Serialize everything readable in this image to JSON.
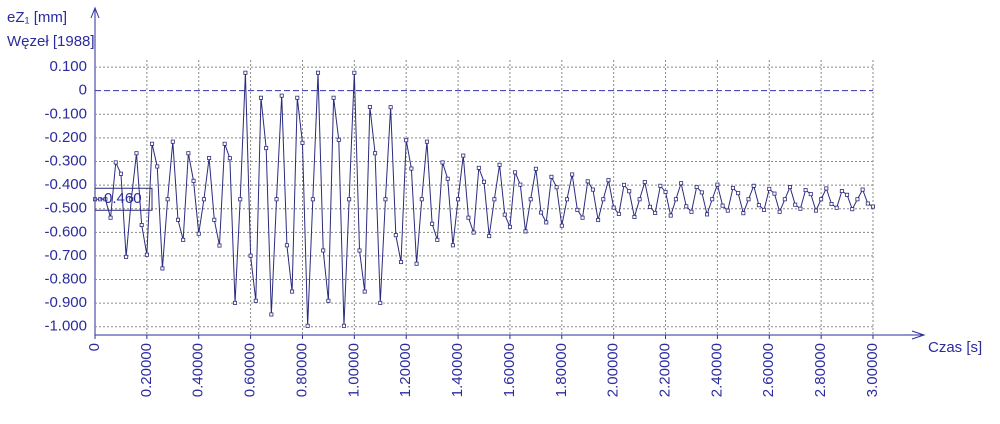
{
  "chart_data": {
    "type": "line",
    "y_label": "eZ₁ [mm]",
    "subtitle": "Węzeł [1988]",
    "x_label": "Czas [s]",
    "annotation": "-0.460",
    "color": "#2b2b7e",
    "grid": true,
    "markers": true,
    "xlim": [
      0,
      3.0
    ],
    "ylim": [
      -1.035,
      0.13
    ],
    "xticks": [
      0,
      {
        "value": 0.2,
        "label": "0.20000"
      },
      {
        "value": 0.4,
        "label": "0.40000"
      },
      {
        "value": 0.6,
        "label": "0.60000"
      },
      {
        "value": 0.8,
        "label": "0.80000"
      },
      {
        "value": 1.0,
        "label": "1.00000"
      },
      {
        "value": 1.2,
        "label": "1.20000"
      },
      {
        "value": 1.4,
        "label": "1.40000"
      },
      {
        "value": 1.6,
        "label": "1.60000"
      },
      {
        "value": 1.8,
        "label": "1.80000"
      },
      {
        "value": 2.0,
        "label": "2.00000"
      },
      {
        "value": 2.2,
        "label": "2.20000"
      },
      {
        "value": 2.4,
        "label": "2.40000"
      },
      {
        "value": 2.6,
        "label": "2.60000"
      },
      {
        "value": 2.8,
        "label": "2.80000"
      },
      {
        "value": 3.0,
        "label": "3.00000"
      }
    ],
    "yticks": [
      {
        "value": 0.1,
        "label": "0.100"
      },
      0,
      {
        "value": -0.1,
        "label": "-0.100"
      },
      {
        "value": -0.2,
        "label": "-0.200"
      },
      {
        "value": -0.3,
        "label": "-0.300"
      },
      {
        "value": -0.4,
        "label": "-0.400"
      },
      {
        "value": -0.5,
        "label": "-0.500"
      },
      {
        "value": -0.6,
        "label": "-0.600"
      },
      {
        "value": -0.7,
        "label": "-0.700"
      },
      {
        "value": -0.8,
        "label": "-0.800"
      },
      {
        "value": -0.9,
        "label": "-0.900"
      },
      {
        "value": -1.0,
        "label": "-1.000"
      }
    ],
    "x": [
      0,
      0.02,
      0.04,
      0.06,
      0.08,
      0.1,
      0.12,
      0.14,
      0.16,
      0.18,
      0.2,
      0.22,
      0.24,
      0.26,
      0.28,
      0.3,
      0.32,
      0.34,
      0.36,
      0.38,
      0.4,
      0.42,
      0.44,
      0.46,
      0.48,
      0.5,
      0.52,
      0.54,
      0.56,
      0.58,
      0.6,
      0.62,
      0.64,
      0.66,
      0.68,
      0.7,
      0.72,
      0.74,
      0.76,
      0.78,
      0.8,
      0.82,
      0.84,
      0.86,
      0.88,
      0.9,
      0.92,
      0.94,
      0.96,
      0.98,
      1.0,
      1.02,
      1.04,
      1.06,
      1.08,
      1.1,
      1.12,
      1.14,
      1.16,
      1.18,
      1.2,
      1.22,
      1.24,
      1.26,
      1.28,
      1.3,
      1.32,
      1.34,
      1.36,
      1.38,
      1.4,
      1.42,
      1.44,
      1.46,
      1.48,
      1.5,
      1.52,
      1.54,
      1.56,
      1.58,
      1.6,
      1.62,
      1.64,
      1.66,
      1.68,
      1.7,
      1.72,
      1.74,
      1.76,
      1.78,
      1.8,
      1.82,
      1.84,
      1.86,
      1.88,
      1.9,
      1.92,
      1.94,
      1.96,
      1.98,
      2.0,
      2.02,
      2.04,
      2.06,
      2.08,
      2.1,
      2.12,
      2.14,
      2.16,
      2.18,
      2.2,
      2.22,
      2.24,
      2.26,
      2.28,
      2.3,
      2.32,
      2.34,
      2.36,
      2.38,
      2.4,
      2.42,
      2.44,
      2.46,
      2.48,
      2.5,
      2.52,
      2.54,
      2.56,
      2.58,
      2.6,
      2.62,
      2.64,
      2.66,
      2.68,
      2.7,
      2.72,
      2.74,
      2.76,
      2.78,
      2.8,
      2.82,
      2.84,
      2.86,
      2.88,
      2.9,
      2.92,
      2.94,
      2.96,
      2.98,
      3.0
    ],
    "values": [
      -0.46,
      -0.46,
      -0.46,
      -0.538,
      -0.304,
      -0.352,
      -0.704,
      -0.46,
      -0.265,
      -0.569,
      -0.695,
      -0.225,
      -0.321,
      -0.753,
      -0.46,
      -0.216,
      -0.547,
      -0.632,
      -0.265,
      -0.382,
      -0.606,
      -0.46,
      -0.285,
      -0.547,
      -0.656,
      -0.225,
      -0.286,
      -0.899,
      -0.46,
      0.076,
      -0.699,
      -0.89,
      -0.03,
      -0.243,
      -0.948,
      -0.46,
      -0.021,
      -0.655,
      -0.851,
      -0.03,
      -0.221,
      -0.996,
      -0.46,
      0.076,
      -0.677,
      -0.89,
      -0.03,
      -0.208,
      -0.996,
      -0.46,
      0.076,
      -0.677,
      -0.851,
      -0.069,
      -0.265,
      -0.899,
      -0.46,
      -0.07,
      -0.612,
      -0.726,
      -0.21,
      -0.33,
      -0.733,
      -0.46,
      -0.216,
      -0.564,
      -0.632,
      -0.304,
      -0.373,
      -0.655,
      -0.46,
      -0.275,
      -0.538,
      -0.601,
      -0.327,
      -0.386,
      -0.616,
      -0.46,
      -0.314,
      -0.525,
      -0.577,
      -0.346,
      -0.398,
      -0.596,
      -0.46,
      -0.331,
      -0.516,
      -0.558,
      -0.365,
      -0.409,
      -0.572,
      -0.46,
      -0.355,
      -0.505,
      -0.538,
      -0.384,
      -0.419,
      -0.548,
      -0.46,
      -0.379,
      -0.495,
      -0.522,
      -0.399,
      -0.426,
      -0.535,
      -0.46,
      -0.387,
      -0.492,
      -0.518,
      -0.403,
      -0.429,
      -0.529,
      -0.46,
      -0.392,
      -0.49,
      -0.513,
      -0.408,
      -0.431,
      -0.524,
      -0.46,
      -0.398,
      -0.487,
      -0.508,
      -0.412,
      -0.434,
      -0.519,
      -0.46,
      -0.403,
      -0.485,
      -0.505,
      -0.416,
      -0.436,
      -0.513,
      -0.46,
      -0.408,
      -0.483,
      -0.5,
      -0.421,
      -0.438,
      -0.508,
      -0.46,
      -0.414,
      -0.48,
      -0.496,
      -0.425,
      -0.441,
      -0.502,
      -0.46,
      -0.419,
      -0.478,
      -0.491
    ]
  }
}
